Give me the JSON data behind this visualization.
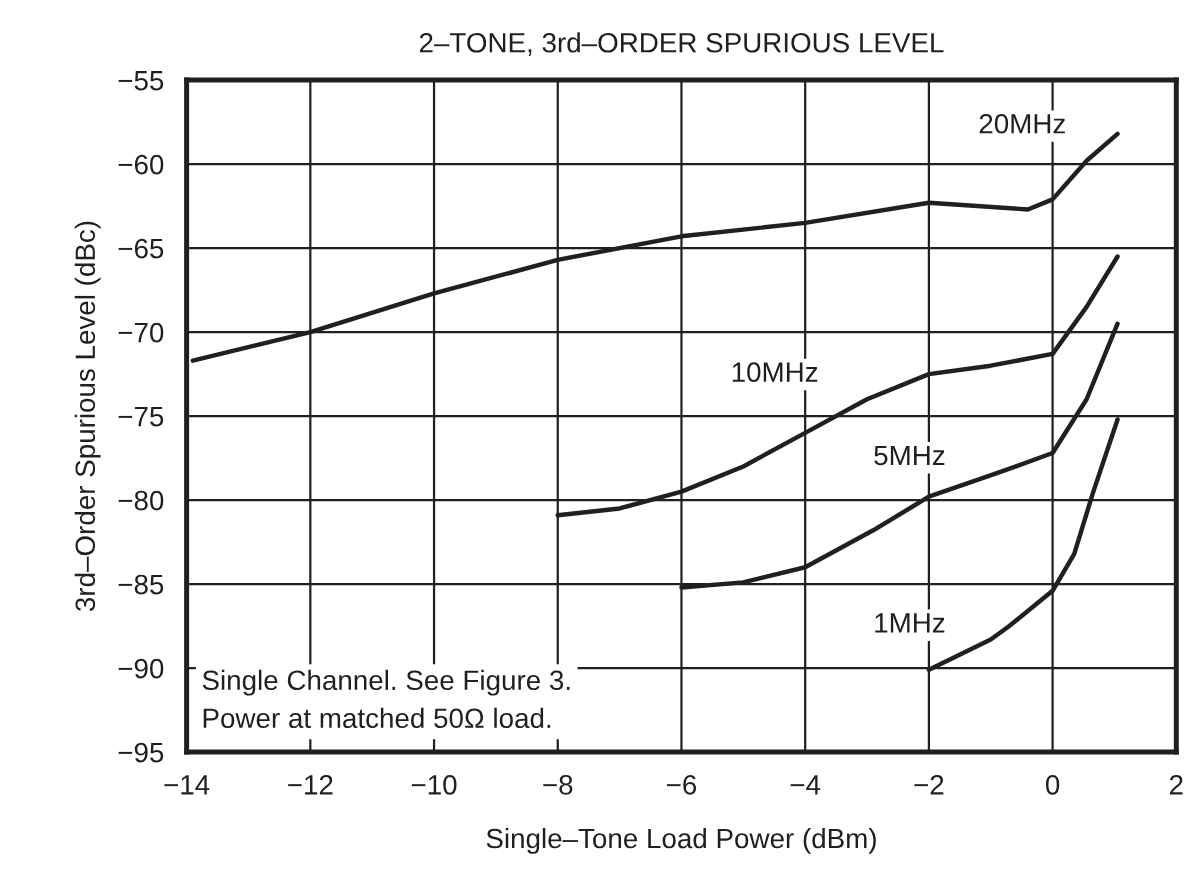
{
  "chart_data": {
    "type": "line",
    "title": "2–TONE, 3rd–ORDER SPURIOUS LEVEL",
    "xlabel": "Single–Tone Load Power (dBm)",
    "ylabel": "3rd–Order Spurious Level (dBc)",
    "xlim": [
      -14,
      2
    ],
    "xticks": [
      -14,
      -12,
      -10,
      -8,
      -6,
      -4,
      -2,
      0,
      2
    ],
    "ylim": [
      -95,
      -55
    ],
    "yticks": [
      -95,
      -90,
      -85,
      -80,
      -75,
      -70,
      -65,
      -60,
      -55
    ],
    "grid": true,
    "marker": "none",
    "line_style": "solid",
    "series": [
      {
        "name": "20MHz",
        "color": "#231f20",
        "x": [
          -13.9,
          -12,
          -10,
          -8,
          -6,
          -4,
          -2,
          -0.4,
          0,
          0.55,
          1.05
        ],
        "values": [
          -71.7,
          -70,
          -67.7,
          -65.7,
          -64.3,
          -63.5,
          -62.3,
          -62.7,
          -62.1,
          -59.8,
          -58.2
        ]
      },
      {
        "name": "10MHz",
        "color": "#231f20",
        "x": [
          -8,
          -7,
          -6,
          -5,
          -4,
          -3,
          -2,
          -1,
          0,
          0.55,
          1.05
        ],
        "values": [
          -80.9,
          -80.5,
          -79.5,
          -78,
          -76,
          -74,
          -72.5,
          -72,
          -71.3,
          -68.5,
          -65.5
        ]
      },
      {
        "name": "5MHz",
        "color": "#231f20",
        "x": [
          -6,
          -5,
          -4,
          -2.9,
          -2,
          -0.9,
          0,
          0.55,
          1.05
        ],
        "values": [
          -85.2,
          -84.9,
          -84,
          -81.8,
          -79.8,
          -78.4,
          -77.2,
          -74,
          -69.5
        ]
      },
      {
        "name": "1MHz",
        "color": "#231f20",
        "x": [
          -2,
          -1,
          -0.7,
          0,
          0.35,
          0.65,
          1.05
        ],
        "values": [
          -90.1,
          -88.3,
          -87.5,
          -85.4,
          -83.2,
          -79.6,
          -75.2
        ]
      }
    ],
    "annotations": [
      "Single Channel. See Figure 3.\nPower at matched 50Ω load."
    ]
  }
}
